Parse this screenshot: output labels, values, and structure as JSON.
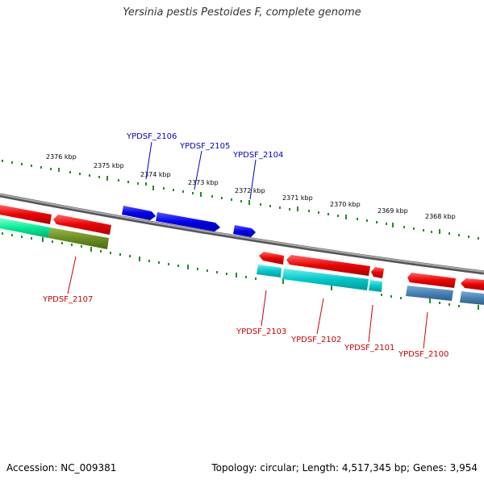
{
  "title": "Yersinia pestis Pestoides F, complete genome",
  "footer": {
    "accession": "Accession: NC_009381",
    "topology": "Topology: circular; Length: 4,517,345 bp; Genes: 3,954"
  },
  "scale_labels": [
    "2376 kbp",
    "2375 kbp",
    "2374 kbp",
    "2373 kbp",
    "2372 kbp",
    "2371 kbp",
    "2370 kbp",
    "2369 kbp",
    "2368 kbp"
  ],
  "genes_top": [
    "YPDSF_2106",
    "YPDSF_2105",
    "YPDSF_2104"
  ],
  "genes_bottom": [
    "YPDSF_2107",
    "YPDSF_2103",
    "YPDSF_2102",
    "YPDSF_2101",
    "YPDSF_2100"
  ],
  "colors": {
    "forward_label": "#0000cc",
    "reverse_label": "#cc0000",
    "blue_gene": "#0000ee",
    "red_gene": "#ee0000",
    "cyan_gene": "#00c8c8",
    "green_gene": "#00ee99",
    "olive_gene": "#6b8e23",
    "steel_gene": "#4682b4",
    "backbone": "#888888",
    "tick": "#228b22"
  }
}
